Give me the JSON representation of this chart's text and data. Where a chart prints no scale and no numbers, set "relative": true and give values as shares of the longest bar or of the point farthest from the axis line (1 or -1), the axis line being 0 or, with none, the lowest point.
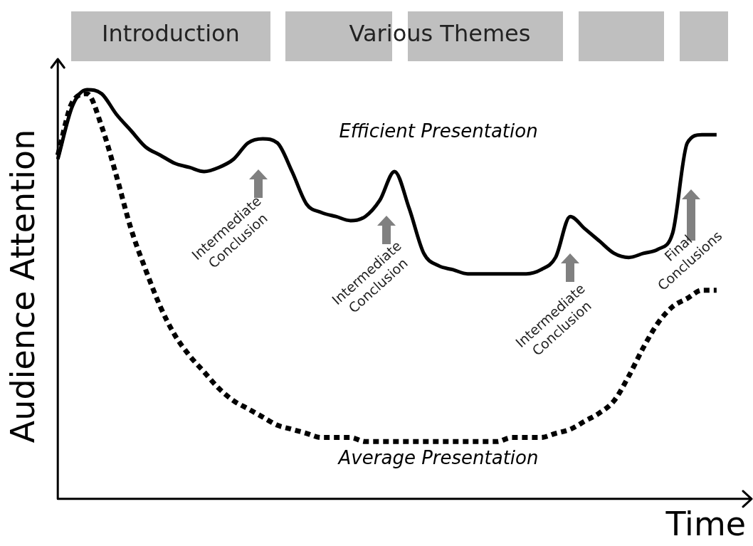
{
  "chart_data": {
    "type": "line",
    "relative": true,
    "xlabel": "Time",
    "ylabel": "Audience Attention",
    "legend": false,
    "grid": false,
    "marker": "none",
    "categories": [
      null,
      null,
      null,
      null,
      null,
      null,
      null,
      null,
      null,
      null,
      null,
      null,
      null,
      null,
      null,
      null,
      null,
      null,
      null,
      null,
      null,
      null,
      null,
      null,
      null,
      null,
      null,
      null,
      null,
      null,
      null,
      null,
      null,
      null,
      null,
      null,
      null,
      null,
      null,
      null,
      null,
      null,
      null,
      null,
      null,
      null,
      null,
      null
    ],
    "series": [
      {
        "name": "Efficient Presentation",
        "color": "#000000",
        "line_style": "solid",
        "values": [
          0.83,
          0.96,
          1,
          0.99,
          0.94,
          0.9,
          0.86,
          0.84,
          0.82,
          0.81,
          0.8,
          0.81,
          0.83,
          0.87,
          0.88,
          0.87,
          0.8,
          0.72,
          0.7,
          0.69,
          0.68,
          0.69,
          0.73,
          0.8,
          0.71,
          0.6,
          0.57,
          0.56,
          0.55,
          0.55,
          0.55,
          0.55,
          0.55,
          0.56,
          0.59,
          0.69,
          0.66,
          0.63,
          0.6,
          0.59,
          0.6,
          0.61,
          0.65,
          0.87,
          0.89,
          0.89,
          null,
          null
        ]
      },
      {
        "name": "Average Presentation",
        "color": "#000000",
        "line_style": "dotted",
        "values": [
          0.84,
          0.97,
          0.99,
          0.91,
          0.79,
          0.66,
          0.56,
          0.47,
          0.4,
          0.35,
          0.31,
          0.27,
          0.24,
          0.22,
          0.2,
          0.18,
          0.17,
          0.16,
          0.15,
          0.15,
          0.15,
          0.14,
          0.14,
          0.14,
          0.14,
          0.14,
          0.14,
          0.14,
          0.14,
          0.14,
          0.14,
          0.15,
          0.15,
          0.15,
          0.16,
          0.17,
          0.19,
          0.21,
          0.24,
          0.3,
          0.37,
          0.43,
          0.47,
          0.49,
          0.51,
          0.51,
          null,
          null
        ]
      }
    ],
    "annotations": [
      "Introduction",
      "Various Themes",
      "Intermediate Conclusion",
      "Intermediate Conclusion",
      "Intermediate Conclusion",
      "Final Conclusions"
    ]
  }
}
